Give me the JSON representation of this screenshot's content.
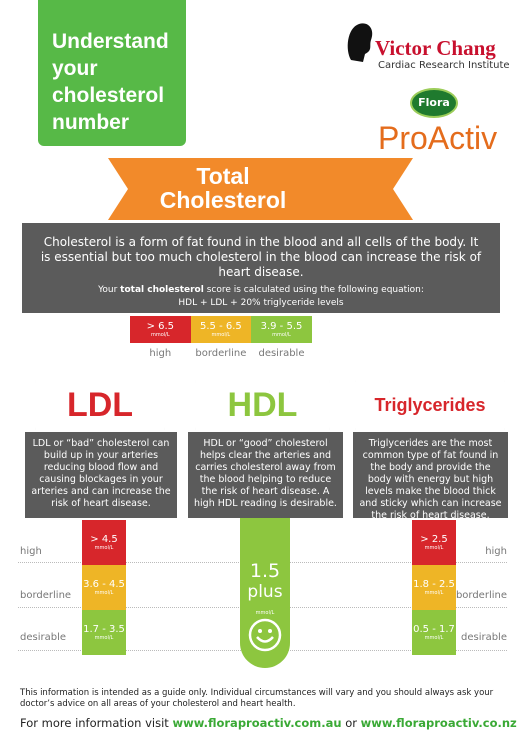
{
  "header": {
    "title": "Understand your cholesterol number",
    "logo_name": "Victor Chang",
    "logo_subtitle": "Cardiac Research Institute",
    "brand_small": "Flora",
    "brand": "ProActiv"
  },
  "total": {
    "title": "Total Cholesterol",
    "description": "Cholesterol is a form of fat found in the blood and all cells of the body.  It is essential but too much cholesterol in the blood can increase the risk of heart disease.",
    "equation_pre": "Your ",
    "equation_bold": "total cholesterol",
    "equation_post": " score is calculated using the following equation:",
    "equation": "HDL + LDL + 20% triglyceride levels",
    "ranges": [
      {
        "value": "> 6.5",
        "unit": "mmol/L",
        "label": "high"
      },
      {
        "value": "5.5 - 6.5",
        "unit": "mmol/L",
        "label": "borderline"
      },
      {
        "value": "3.9 - 5.5",
        "unit": "mmol/L",
        "label": "desirable"
      }
    ]
  },
  "levels": {
    "left": [
      "high",
      "borderline",
      "desirable"
    ],
    "right": [
      "high",
      "borderline",
      "desirable"
    ]
  },
  "ldl": {
    "title": "LDL",
    "description": "LDL  or “bad” cholesterol can build up in your arteries reducing blood flow and causing blockages in your arteries and can increase the risk of heart disease.",
    "ranges": [
      {
        "value": "> 4.5",
        "unit": "mmol/L"
      },
      {
        "value": "3.6 - 4.5",
        "unit": "mmol/L"
      },
      {
        "value": "1.7 - 3.5",
        "unit": "mmol/L"
      }
    ]
  },
  "hdl": {
    "title": "HDL",
    "description": "HDL or “good” cholesterol helps clear the arteries and carries cholesterol away from the blood helping to reduce the risk of heart disease. A high HDL reading is desirable.",
    "value": "1.5",
    "value_suffix": "plus",
    "unit": "mmol/L"
  },
  "triglycerides": {
    "title": "Triglycerides",
    "description": "Triglycerides are the most common type of fat found in the body and provide the body with energy but high levels make the blood thick and sticky which can increase the risk of heart disease.",
    "ranges": [
      {
        "value": "> 2.5",
        "unit": "mmol/L"
      },
      {
        "value": "1.8 - 2.5",
        "unit": "mmol/L"
      },
      {
        "value": "0.5 - 1.7",
        "unit": "mmol/L"
      }
    ]
  },
  "footer": {
    "disclaimer": "This information is intended as a guide only. Individual circumstances will vary and you should always ask your doctor’s advice on all areas of your cholesterol and heart health.",
    "more_pre": "For more information visit ",
    "link_au": "www.floraproactiv.com.au",
    "more_or": " or ",
    "link_nz": "www.floraproactiv.co.nz"
  }
}
